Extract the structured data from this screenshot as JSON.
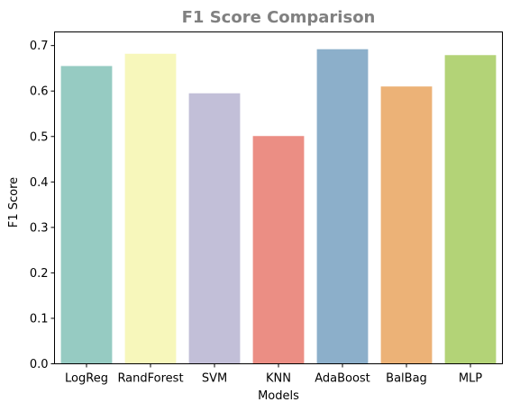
{
  "chart_data": {
    "type": "bar",
    "title": "F1 Score Comparison",
    "xlabel": "Models",
    "ylabel": "F1 Score",
    "categories": [
      "LogReg",
      "RandForest",
      "SVM",
      "KNN",
      "AdaBoost",
      "BalBag",
      "MLP"
    ],
    "values": [
      0.655,
      0.682,
      0.595,
      0.501,
      0.692,
      0.61,
      0.679
    ],
    "colors": [
      "#96cbc2",
      "#f7f7bb",
      "#c2bfd8",
      "#eb8e84",
      "#8cafca",
      "#ecb277",
      "#b3d377"
    ],
    "ylim": [
      0,
      0.73
    ],
    "yticks": [
      "0.0",
      "0.1",
      "0.2",
      "0.3",
      "0.4",
      "0.5",
      "0.6",
      "0.7"
    ],
    "grid": false,
    "legend": "none"
  }
}
